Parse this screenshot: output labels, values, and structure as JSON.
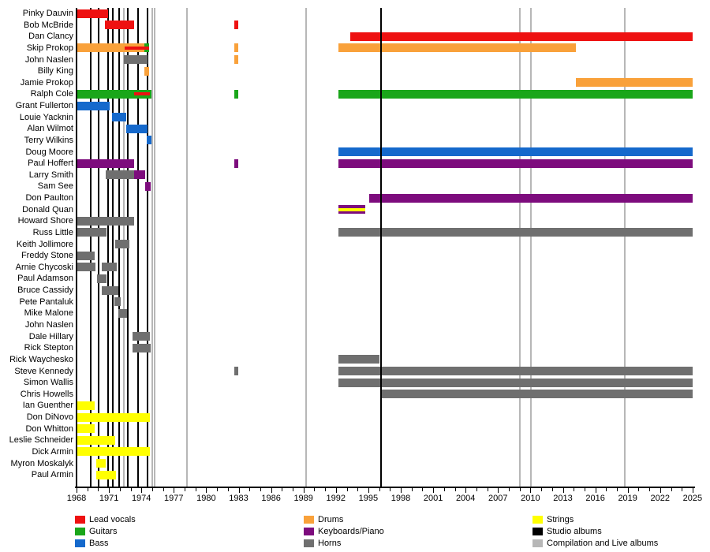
{
  "chart_data": {
    "type": "bar",
    "subtype": "band-membership-timeline",
    "title": "",
    "axis": {
      "year_min": 1968,
      "year_max": 2025,
      "tick_step": 1,
      "label_step": 3,
      "tick_labels": [
        "1968",
        "1971",
        "1974",
        "1977",
        "1980",
        "1983",
        "1986",
        "1989",
        "1992",
        "1995",
        "1998",
        "2001",
        "2004",
        "2007",
        "2010",
        "2013",
        "2016",
        "2019",
        "2022",
        "2025"
      ]
    },
    "roles": {
      "lead_vocals": {
        "label": "Lead vocals",
        "color": "#ee1111"
      },
      "guitars": {
        "label": "Guitars",
        "color": "#1aa61a"
      },
      "bass": {
        "label": "Bass",
        "color": "#1569cc"
      },
      "drums": {
        "label": "Drums",
        "color": "#f9a13a"
      },
      "keyboards": {
        "label": "Keyboards/Piano",
        "color": "#7d0c7d"
      },
      "horns": {
        "label": "Horns",
        "color": "#6f6f6f"
      },
      "strings": {
        "label": "Strings",
        "color": "#ffff00"
      }
    },
    "album_markers": {
      "studio": {
        "label": "Studio albums",
        "color": "#000000"
      },
      "compilation": {
        "label": "Compilation and Live albums",
        "color": "#b7b7b7"
      }
    },
    "albums": [
      {
        "type": "studio",
        "year": 1969.3,
        "layer": "back"
      },
      {
        "type": "studio",
        "year": 1970.05,
        "layer": "back"
      },
      {
        "type": "studio",
        "year": 1970.9,
        "layer": "back"
      },
      {
        "type": "studio",
        "year": 1971.35,
        "layer": "back"
      },
      {
        "type": "studio",
        "year": 1971.95,
        "layer": "back"
      },
      {
        "type": "studio",
        "year": 1972.75,
        "layer": "back"
      },
      {
        "type": "studio",
        "year": 1973.7,
        "layer": "back"
      },
      {
        "type": "studio",
        "year": 1974.6,
        "layer": "back"
      },
      {
        "type": "studio",
        "year": 1996.15,
        "layer": "front"
      },
      {
        "type": "compilation",
        "year": 1972.35,
        "layer": "back"
      },
      {
        "type": "compilation",
        "year": 1975.0,
        "layer": "back"
      },
      {
        "type": "compilation",
        "year": 1975.25,
        "layer": "back"
      },
      {
        "type": "compilation",
        "year": 1978.2,
        "layer": "back"
      },
      {
        "type": "compilation",
        "year": 1989.25,
        "layer": "back"
      },
      {
        "type": "compilation",
        "year": 2009.0,
        "layer": "back"
      },
      {
        "type": "compilation",
        "year": 2010.05,
        "layer": "back"
      },
      {
        "type": "compilation",
        "year": 2018.75,
        "layer": "back"
      }
    ],
    "members": [
      {
        "name": "Pinky Dauvin",
        "bars": [
          {
            "role": "lead_vocals",
            "start": 1968.05,
            "end": 1970.9
          }
        ]
      },
      {
        "name": "Bob McBride",
        "bars": [
          {
            "role": "lead_vocals",
            "start": 1970.65,
            "end": 1973.35
          },
          {
            "role": "lead_vocals",
            "start": 1982.6,
            "end": 1982.95
          }
        ]
      },
      {
        "name": "Dan Clancy",
        "bars": [
          {
            "role": "lead_vocals",
            "start": 1993.3,
            "end": 2025
          }
        ]
      },
      {
        "name": "Skip Prokop",
        "bars": [
          {
            "role": "drums",
            "start": 1968.05,
            "end": 1974.3
          },
          {
            "role": "guitars",
            "start": 1974.3,
            "end": 1974.72
          },
          {
            "role": "drums",
            "start": 1982.6,
            "end": 1982.95
          },
          {
            "role": "drums",
            "start": 1992.2,
            "end": 2014.2
          }
        ],
        "stripes": [
          {
            "role": "lead_vocals",
            "start": 1972.45,
            "end": 1974.72
          }
        ]
      },
      {
        "name": "John Naslen",
        "bars": [
          {
            "role": "horns",
            "start": 1972.4,
            "end": 1974.6
          },
          {
            "role": "drums",
            "start": 1982.6,
            "end": 1982.95
          }
        ]
      },
      {
        "name": "Billy King",
        "bars": [
          {
            "role": "drums",
            "start": 1974.3,
            "end": 1974.72
          }
        ]
      },
      {
        "name": "Jamie Prokop",
        "bars": [
          {
            "role": "drums",
            "start": 2014.2,
            "end": 2025
          }
        ]
      },
      {
        "name": "Ralph Cole",
        "bars": [
          {
            "role": "guitars",
            "start": 1968.05,
            "end": 1974.95
          },
          {
            "role": "guitars",
            "start": 1982.6,
            "end": 1982.95
          },
          {
            "role": "guitars",
            "start": 1992.2,
            "end": 2025
          }
        ],
        "stripes": [
          {
            "role": "lead_vocals",
            "start": 1973.35,
            "end": 1974.8
          }
        ]
      },
      {
        "name": "Grant Fullerton",
        "bars": [
          {
            "role": "bass",
            "start": 1968.05,
            "end": 1971.05
          }
        ]
      },
      {
        "name": "Louie Yacknin",
        "bars": [
          {
            "role": "bass",
            "start": 1971.3,
            "end": 1972.6
          }
        ]
      },
      {
        "name": "Alan Wilmot",
        "bars": [
          {
            "role": "bass",
            "start": 1972.6,
            "end": 1974.6
          }
        ]
      },
      {
        "name": "Terry Wilkins",
        "bars": [
          {
            "role": "bass",
            "start": 1974.5,
            "end": 1974.95
          }
        ]
      },
      {
        "name": "Doug Moore",
        "bars": [
          {
            "role": "bass",
            "start": 1992.2,
            "end": 2025
          }
        ]
      },
      {
        "name": "Paul Hoffert",
        "bars": [
          {
            "role": "keyboards",
            "start": 1968.05,
            "end": 1973.35
          },
          {
            "role": "keyboards",
            "start": 1982.6,
            "end": 1982.95
          },
          {
            "role": "keyboards",
            "start": 1992.2,
            "end": 2025
          }
        ]
      },
      {
        "name": "Larry Smith",
        "bars": [
          {
            "role": "horns",
            "start": 1970.7,
            "end": 1973.35
          },
          {
            "role": "keyboards",
            "start": 1973.35,
            "end": 1974.35
          }
        ]
      },
      {
        "name": "Sam See",
        "bars": [
          {
            "role": "keyboards",
            "start": 1974.35,
            "end": 1974.85
          }
        ]
      },
      {
        "name": "Don Paulton",
        "bars": [
          {
            "role": "keyboards",
            "start": 1995.1,
            "end": 2025
          }
        ]
      },
      {
        "name": "Donald Quan",
        "bars": [
          {
            "role": "keyboards",
            "start": 1992.2,
            "end": 1994.7
          }
        ],
        "stripes": [
          {
            "role": "strings",
            "start": 1992.2,
            "end": 1994.7
          }
        ]
      },
      {
        "name": "Howard Shore",
        "bars": [
          {
            "role": "horns",
            "start": 1968.05,
            "end": 1973.35
          }
        ]
      },
      {
        "name": "Russ Little",
        "bars": [
          {
            "role": "horns",
            "start": 1968.05,
            "end": 1970.8
          },
          {
            "role": "horns",
            "start": 1992.2,
            "end": 2025
          }
        ]
      },
      {
        "name": "Keith Jollimore",
        "bars": [
          {
            "role": "horns",
            "start": 1971.6,
            "end": 1972.9
          }
        ]
      },
      {
        "name": "Freddy Stone",
        "bars": [
          {
            "role": "horns",
            "start": 1968.05,
            "end": 1969.7
          }
        ]
      },
      {
        "name": "Arnie Chycoski",
        "bars": [
          {
            "role": "horns",
            "start": 1968.05,
            "end": 1969.75
          },
          {
            "role": "horns",
            "start": 1970.3,
            "end": 1971.75
          }
        ]
      },
      {
        "name": "Paul Adamson",
        "bars": [
          {
            "role": "horns",
            "start": 1969.9,
            "end": 1970.8
          }
        ]
      },
      {
        "name": "Bruce Cassidy",
        "bars": [
          {
            "role": "horns",
            "start": 1970.3,
            "end": 1971.85
          }
        ]
      },
      {
        "name": "Pete Pantaluk",
        "bars": [
          {
            "role": "horns",
            "start": 1971.5,
            "end": 1972.1
          }
        ]
      },
      {
        "name": "Mike Malone",
        "bars": [
          {
            "role": "horns",
            "start": 1971.85,
            "end": 1972.7
          }
        ]
      },
      {
        "name": "John Naslen",
        "bars": []
      },
      {
        "name": "Dale Hillary",
        "bars": [
          {
            "role": "horns",
            "start": 1973.2,
            "end": 1974.8
          }
        ]
      },
      {
        "name": "Rick Stepton",
        "bars": [
          {
            "role": "horns",
            "start": 1973.2,
            "end": 1974.85
          }
        ]
      },
      {
        "name": "Rick Waychesko",
        "bars": [
          {
            "role": "horns",
            "start": 1992.2,
            "end": 1996.0
          }
        ]
      },
      {
        "name": "Steve Kennedy",
        "bars": [
          {
            "role": "horns",
            "start": 1982.6,
            "end": 1982.95
          },
          {
            "role": "horns",
            "start": 1992.2,
            "end": 2025
          }
        ]
      },
      {
        "name": "Simon Wallis",
        "bars": [
          {
            "role": "horns",
            "start": 1992.2,
            "end": 2025
          }
        ]
      },
      {
        "name": "Chris Howells",
        "bars": [
          {
            "role": "horns",
            "start": 1996.2,
            "end": 2025
          }
        ]
      },
      {
        "name": "Ian Guenther",
        "bars": [
          {
            "role": "strings",
            "start": 1968.05,
            "end": 1969.7
          }
        ]
      },
      {
        "name": "Don DiNovo",
        "bars": [
          {
            "role": "strings",
            "start": 1968.05,
            "end": 1974.8
          }
        ]
      },
      {
        "name": "Don Whitton",
        "bars": [
          {
            "role": "strings",
            "start": 1968.05,
            "end": 1969.7
          }
        ]
      },
      {
        "name": "Leslie Schneider",
        "bars": [
          {
            "role": "strings",
            "start": 1968.05,
            "end": 1971.6
          }
        ]
      },
      {
        "name": "Dick Armin",
        "bars": [
          {
            "role": "strings",
            "start": 1968.05,
            "end": 1974.8
          }
        ]
      },
      {
        "name": "Myron Moskalyk",
        "bars": [
          {
            "role": "strings",
            "start": 1969.85,
            "end": 1970.7
          }
        ]
      },
      {
        "name": "Paul Armin",
        "bars": [
          {
            "role": "strings",
            "start": 1969.85,
            "end": 1971.65
          }
        ]
      }
    ],
    "legend_columns": [
      [
        "lead_vocals",
        "guitars",
        "bass"
      ],
      [
        "drums",
        "keyboards",
        "horns"
      ],
      [
        "strings",
        "studio",
        "compilation"
      ]
    ]
  }
}
